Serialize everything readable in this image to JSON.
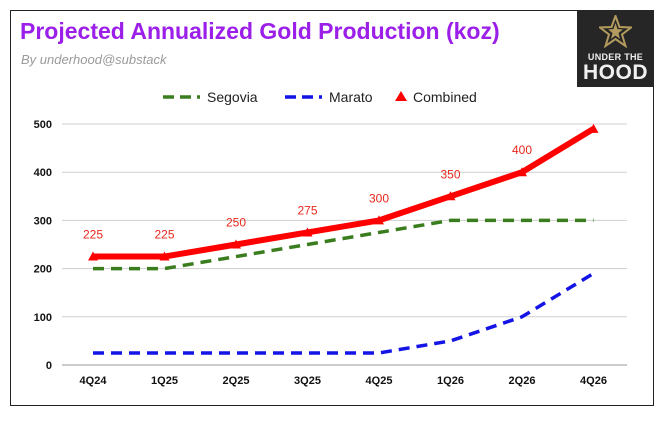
{
  "header": {
    "title": "Projected Annualized Gold Production (koz)",
    "subtitle": "By underhood@substack"
  },
  "logo": {
    "line1": "UNDER THE",
    "line2": "HOOD",
    "icon": "star-mark-icon"
  },
  "colors": {
    "segovia": "#3a7d1f",
    "marato": "#1414e6",
    "combined": "#ff0000",
    "title": "#9b1fe8"
  },
  "chart_data": {
    "type": "line",
    "categories": [
      "4Q24",
      "1Q25",
      "2Q25",
      "3Q25",
      "4Q25",
      "1Q26",
      "2Q26",
      "4Q26"
    ],
    "ylim": [
      0,
      500
    ],
    "yticks": [
      0,
      100,
      200,
      300,
      400,
      500
    ],
    "grid": true,
    "legend_position": "top-center",
    "series": [
      {
        "name": "Segovia",
        "style": "dashed",
        "values": [
          200,
          200,
          225,
          250,
          275,
          300,
          300,
          300
        ]
      },
      {
        "name": "Marato",
        "style": "dashed",
        "values": [
          25,
          25,
          25,
          25,
          25,
          50,
          100,
          190
        ]
      },
      {
        "name": "Combined",
        "style": "solid-triangle-markers",
        "values": [
          225,
          225,
          250,
          275,
          300,
          350,
          400,
          490
        ]
      }
    ],
    "data_labels": [
      "225",
      "225",
      "250",
      "275",
      "300",
      "350",
      "400"
    ]
  }
}
